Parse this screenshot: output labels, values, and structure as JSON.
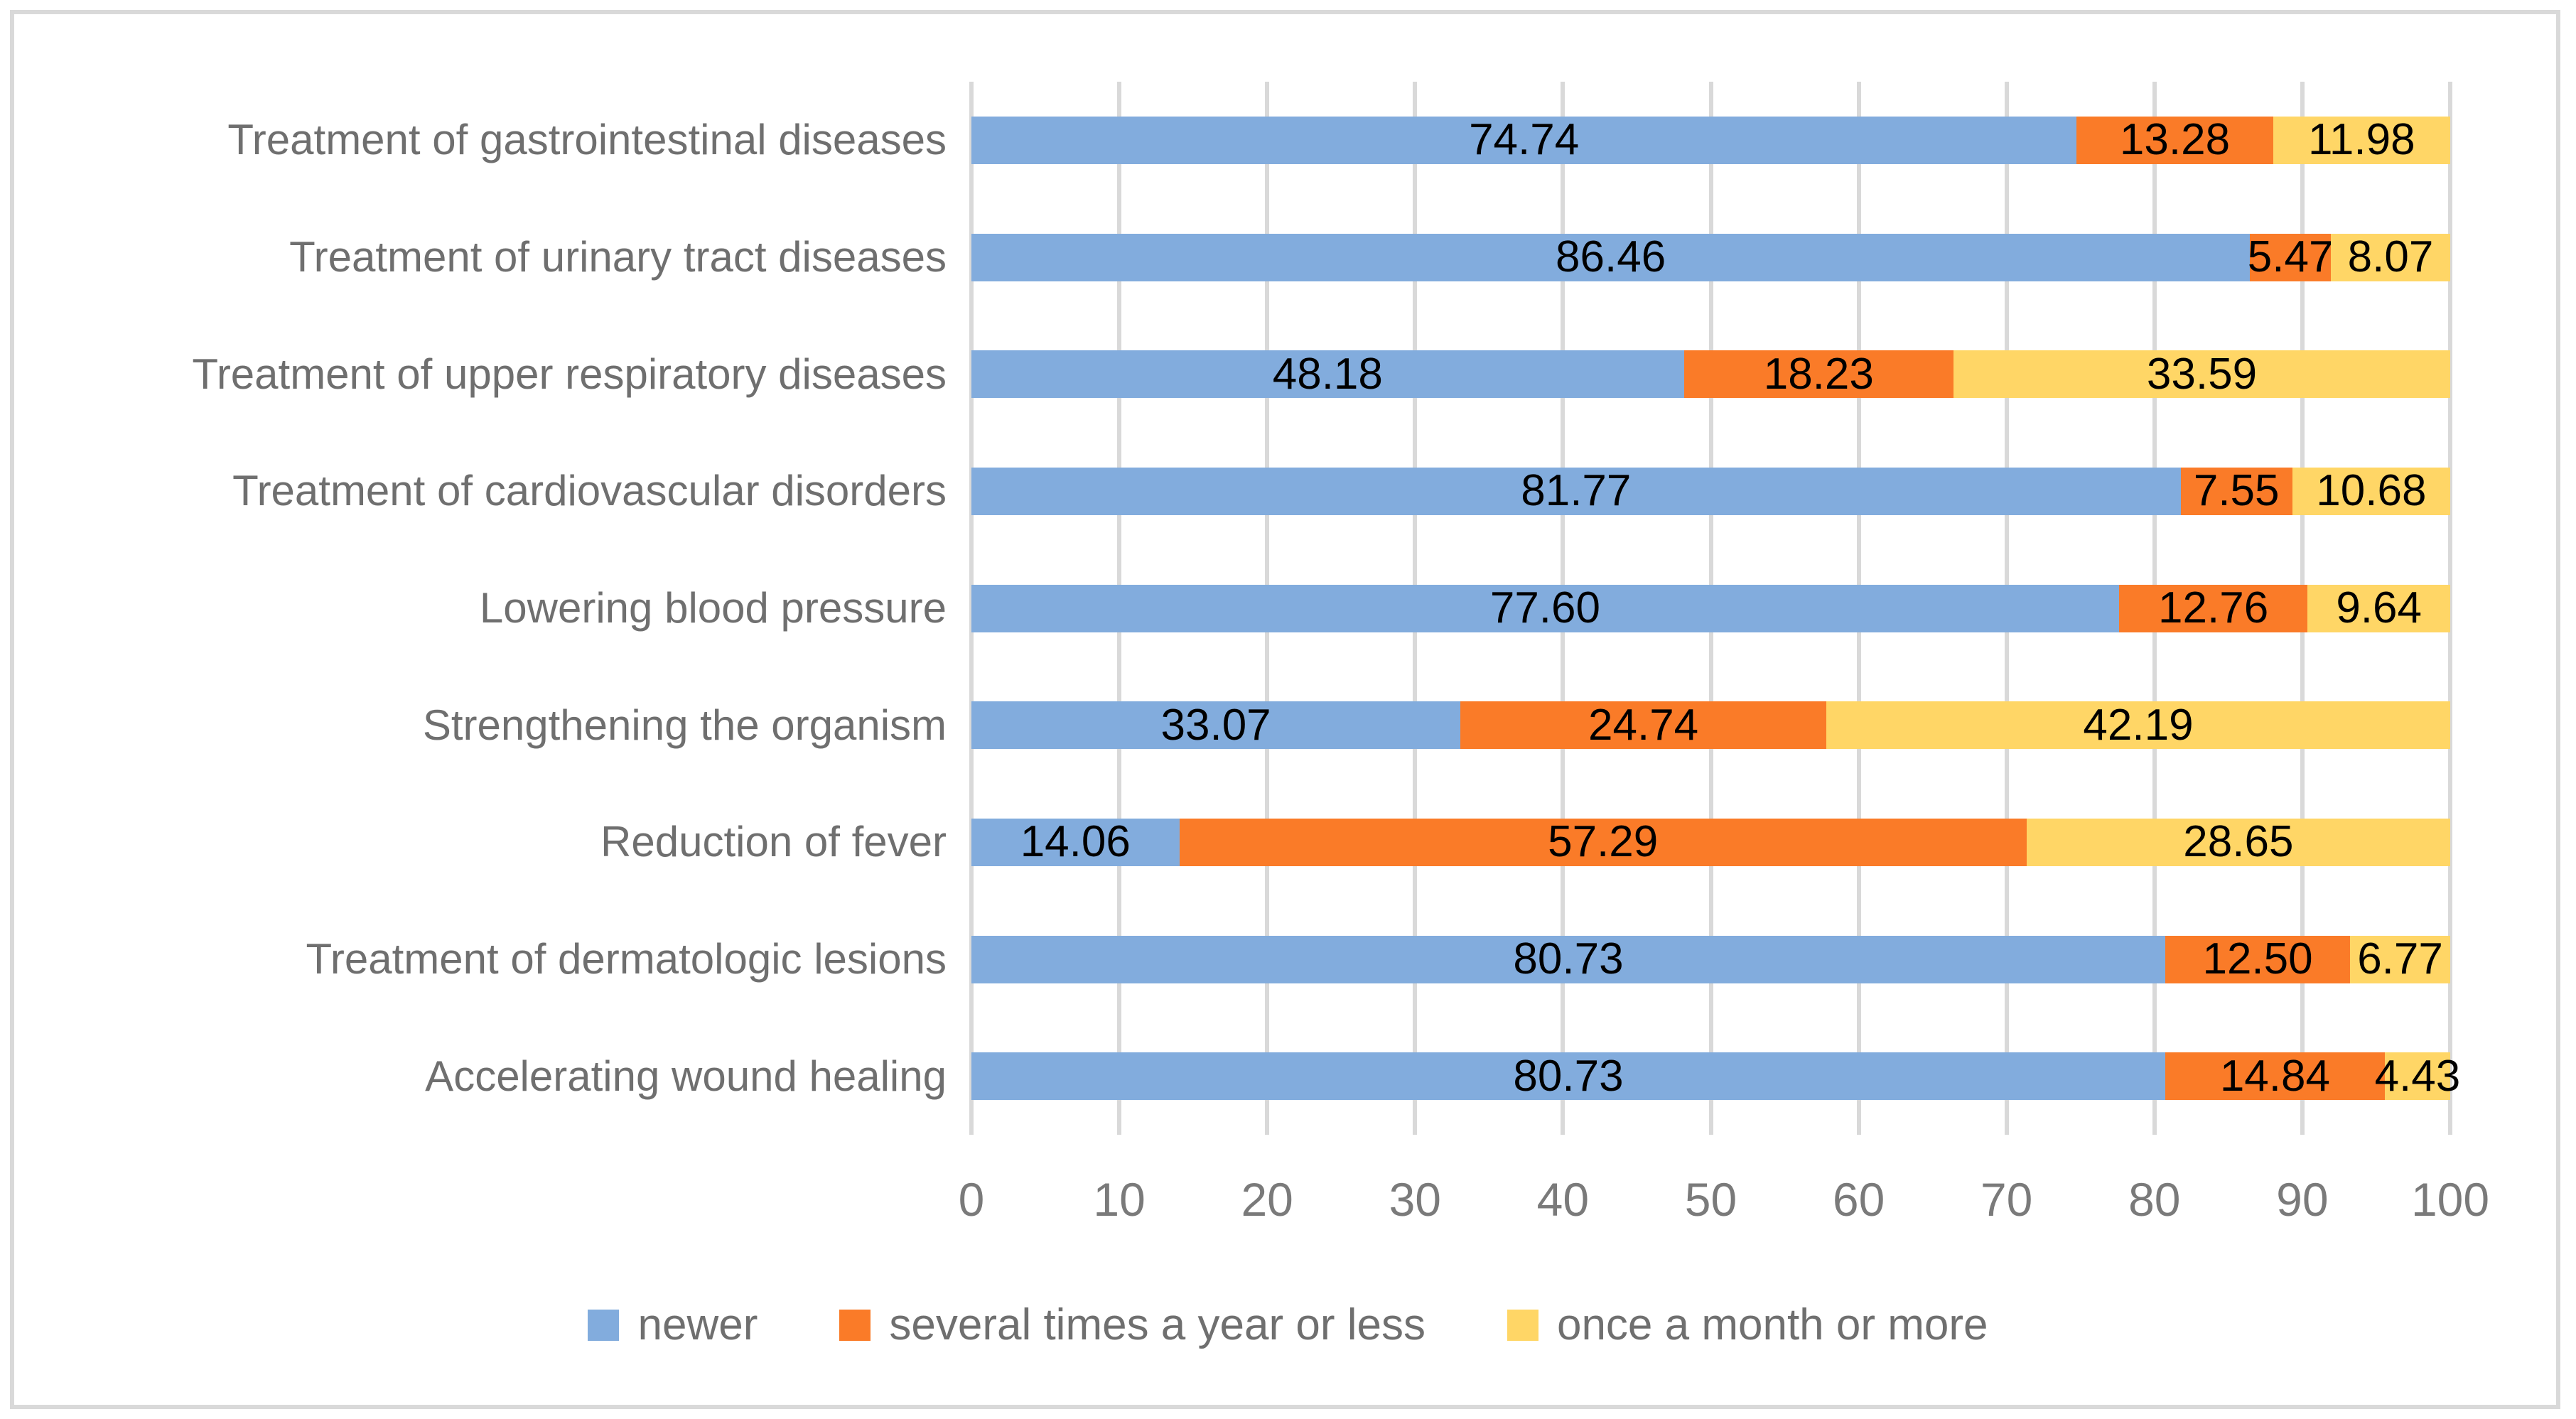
{
  "frame": {
    "border_color": "#D9D9D9",
    "background": "#FFFFFF"
  },
  "chart_data": {
    "type": "bar",
    "orientation": "horizontal",
    "stacked": true,
    "title": "",
    "xlabel": "",
    "ylabel": "",
    "xlim": [
      0,
      100
    ],
    "x_ticks": [
      "0",
      "10",
      "20",
      "30",
      "40",
      "50",
      "60",
      "70",
      "80",
      "90",
      "100"
    ],
    "grid": "vertical",
    "gridline_color": "#D9D9D9",
    "axis_text_color": "#7A7A7A",
    "category_text_color": "#6F6F6F",
    "value_label_color": "#000000",
    "legend_position": "bottom",
    "categories": [
      "Treatment of gastrointestinal diseases",
      "Treatment of urinary tract diseases",
      "Treatment of upper respiratory diseases",
      "Treatment of cardiovascular disorders",
      "Lowering blood pressure",
      "Strengthening the organism",
      "Reduction of fever",
      "Treatment of dermatologic lesions",
      "Accelerating wound healing"
    ],
    "series": [
      {
        "name": "newer",
        "color": "#82ACDD",
        "values": [
          74.74,
          86.46,
          48.18,
          81.77,
          77.6,
          33.07,
          14.06,
          80.73,
          80.73
        ],
        "labels": [
          "74.74",
          "86.46",
          "48.18",
          "81.77",
          "77.60",
          "33.07",
          "14.06",
          "80.73",
          "80.73"
        ]
      },
      {
        "name": "several times a year or less",
        "color": "#FA7B28",
        "values": [
          13.28,
          5.47,
          18.23,
          7.55,
          12.76,
          24.74,
          57.29,
          12.5,
          14.84
        ],
        "labels": [
          "13.28",
          "5.47",
          "18.23",
          "7.55",
          "12.76",
          "24.74",
          "57.29",
          "12.50",
          "14.84"
        ]
      },
      {
        "name": "once a month or more",
        "color": "#FFD666",
        "values": [
          11.98,
          8.07,
          33.59,
          10.68,
          9.64,
          42.19,
          28.65,
          6.77,
          4.43
        ],
        "labels": [
          "11.98",
          "8.07",
          "33.59",
          "10.68",
          "9.64",
          "42.19",
          "28.65",
          "6.77",
          "4.43"
        ]
      }
    ]
  }
}
